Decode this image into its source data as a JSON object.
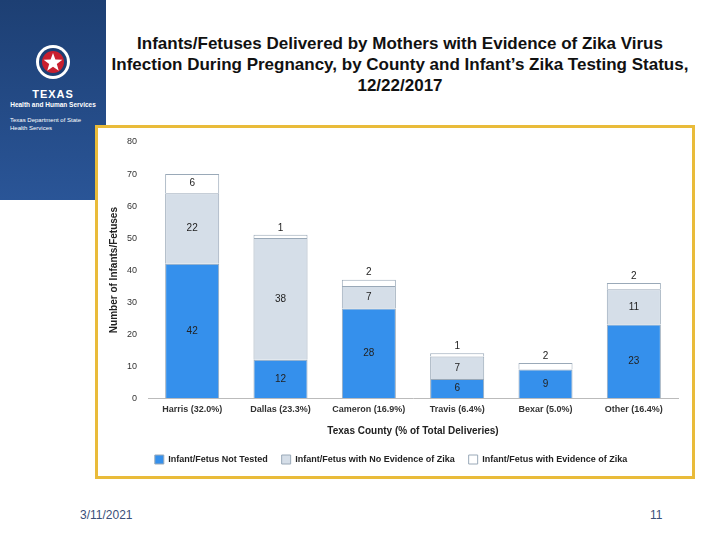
{
  "slide": {
    "logo_lines": [
      "TEXAS",
      "Health and Human Services",
      "Texas Department of State Health Services"
    ],
    "date": "3/11/2021",
    "page": "11"
  },
  "chart_data": {
    "type": "bar",
    "title": "Infants/Fetuses Delivered by Mothers with Evidence of Zika Virus Infection During Pregnancy, by County and Infant’s Zika Testing Status, 12/22/2017",
    "x_label": "Texas County (% of Total Deliveries)",
    "y_label": "Number of Infants/Fetuses",
    "categories": [
      "Harris (32.0%)",
      "Dallas (23.3%)",
      "Cameron (16.9%)",
      "Travis (6.4%)",
      "Bexar (5.0%)",
      "Other (16.4%)"
    ],
    "series": [
      {
        "name": "Infant/Fetus Not Tested",
        "color": "#3590ec",
        "values": [
          42,
          12,
          28,
          6,
          9,
          23
        ]
      },
      {
        "name": "Infant/Fetus with No Evidence of Zika",
        "color": "#d5dee8",
        "values": [
          22,
          38,
          7,
          7,
          null,
          11
        ]
      },
      {
        "name": "Infant/Fetus with Evidence of Zika",
        "color": "#ffffff",
        "values": [
          6,
          1,
          2,
          1,
          2,
          2
        ]
      }
    ],
    "stacked": true,
    "data_labels": true,
    "legend": "bottom",
    "grid": false,
    "ylim": [
      0,
      80
    ],
    "yticks": [
      0,
      10,
      20,
      30,
      40,
      50,
      60,
      70,
      80
    ]
  }
}
